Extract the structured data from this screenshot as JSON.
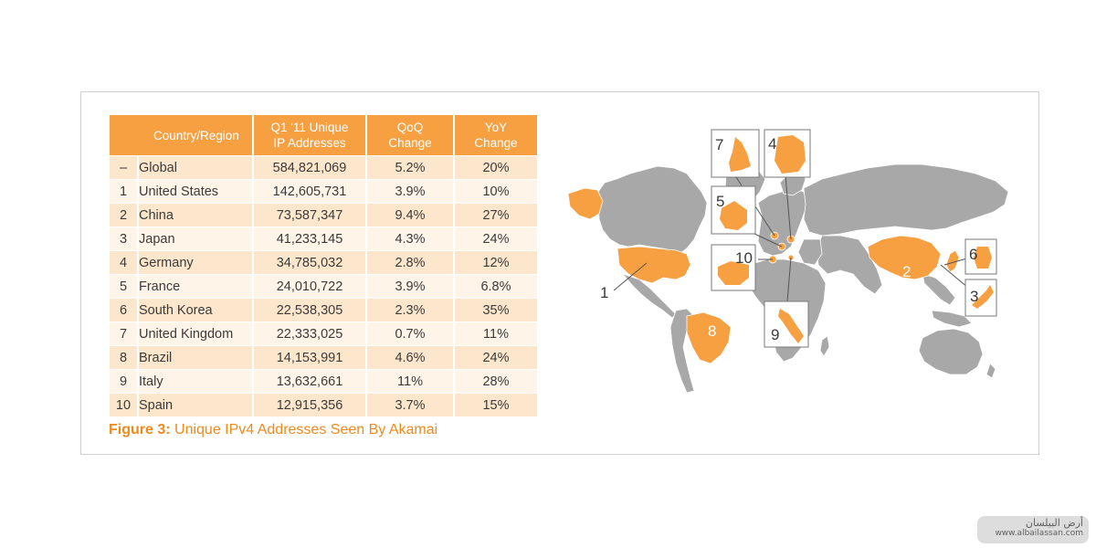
{
  "table": {
    "headers": {
      "country": "Country/Region",
      "ip_line1": "Q1 '11 Unique",
      "ip_line2": "IP Addresses",
      "qoq_line1": "QoQ",
      "qoq_line2": "Change",
      "yoy_line1": "YoY",
      "yoy_line2": "Change"
    },
    "rows": [
      {
        "rank": "–",
        "name": "Global",
        "ips": "584,821,069",
        "qoq": "5.2%",
        "yoy": "20%"
      },
      {
        "rank": "1",
        "name": "United States",
        "ips": "142,605,731",
        "qoq": "3.9%",
        "yoy": "10%"
      },
      {
        "rank": "2",
        "name": "China",
        "ips": "73,587,347",
        "qoq": "9.4%",
        "yoy": "27%"
      },
      {
        "rank": "3",
        "name": "Japan",
        "ips": "41,233,145",
        "qoq": "4.3%",
        "yoy": "24%"
      },
      {
        "rank": "4",
        "name": "Germany",
        "ips": "34,785,032",
        "qoq": "2.8%",
        "yoy": "12%"
      },
      {
        "rank": "5",
        "name": "France",
        "ips": "24,010,722",
        "qoq": "3.9%",
        "yoy": "6.8%"
      },
      {
        "rank": "6",
        "name": "South Korea",
        "ips": "22,538,305",
        "qoq": "2.3%",
        "yoy": "35%"
      },
      {
        "rank": "7",
        "name": "United Kingdom",
        "ips": "22,333,025",
        "qoq": "0.7%",
        "yoy": "11%"
      },
      {
        "rank": "8",
        "name": "Brazil",
        "ips": "14,153,991",
        "qoq": "4.6%",
        "yoy": "24%"
      },
      {
        "rank": "9",
        "name": "Italy",
        "ips": "13,632,661",
        "qoq": "11%",
        "yoy": "28%"
      },
      {
        "rank": "10",
        "name": "Spain",
        "ips": "12,915,356",
        "qoq": "3.7%",
        "yoy": "15%"
      }
    ]
  },
  "caption": {
    "label": "Figure 3:",
    "text": " Unique IPv4 Addresses Seen By Akamai"
  },
  "map": {
    "labels": {
      "us": "1",
      "china": "2",
      "japan": "3",
      "germany": "4",
      "france": "5",
      "korea": "6",
      "uk": "7",
      "brazil": "8",
      "italy": "9",
      "spain": "10"
    },
    "colors": {
      "highlight": "#f7a042",
      "land": "#a8a8a8",
      "accent": "#f08a1a"
    }
  },
  "watermark": {
    "line1": "أرض البيلسان",
    "line2": "www.albailassan.com"
  }
}
